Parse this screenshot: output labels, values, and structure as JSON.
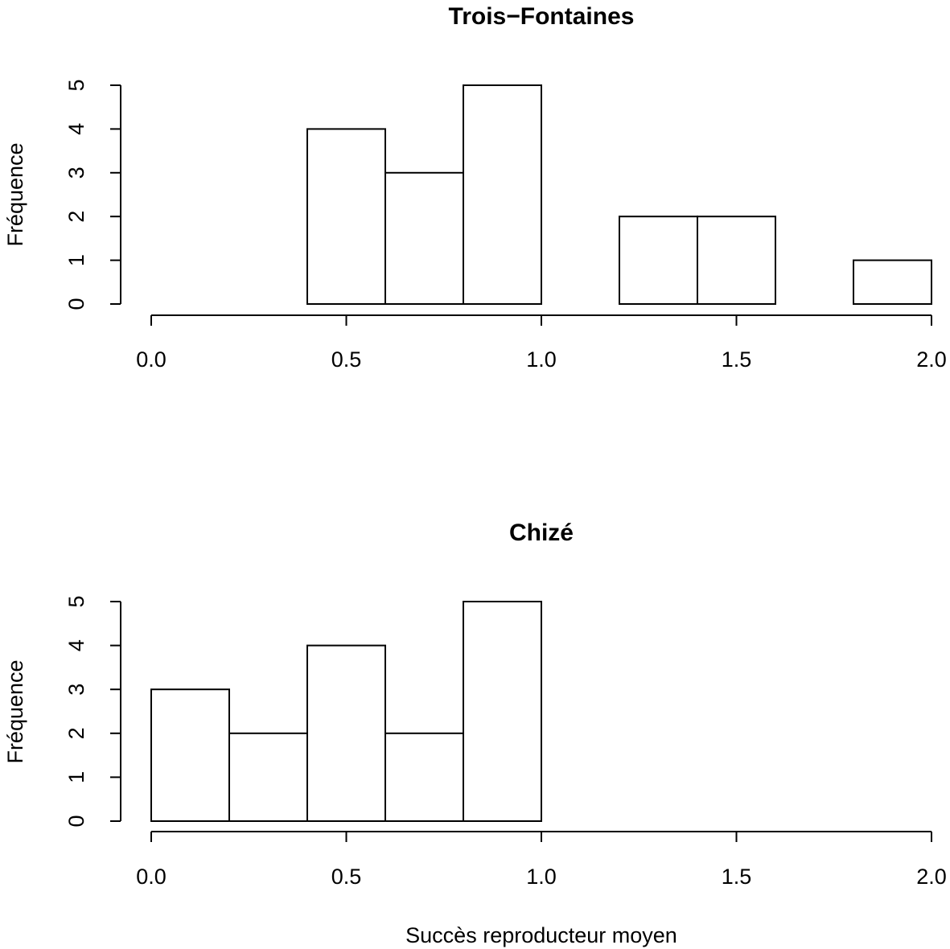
{
  "chart_data": [
    {
      "type": "bar",
      "title": "Trois−Fontaines",
      "ylabel": "Fréquence",
      "xlabel": "",
      "bin_edges": [
        0.4,
        0.6,
        0.8,
        1.0,
        1.2,
        1.4,
        1.6,
        1.8,
        2.0
      ],
      "values": [
        4,
        3,
        5,
        0,
        2,
        2,
        0,
        1
      ],
      "xlim": [
        0.0,
        2.0
      ],
      "ylim": [
        0,
        5
      ],
      "xticks": [
        "0.0",
        "0.5",
        "1.0",
        "1.5",
        "2.0"
      ],
      "yticks": [
        "0",
        "1",
        "2",
        "3",
        "4",
        "5"
      ]
    },
    {
      "type": "bar",
      "title": "Chizé",
      "ylabel": "Fréquence",
      "xlabel": "Succès reproducteur moyen",
      "bin_edges": [
        0.0,
        0.2,
        0.4,
        0.6,
        0.8,
        1.0
      ],
      "values": [
        3,
        2,
        4,
        2,
        5
      ],
      "xlim": [
        0.0,
        2.0
      ],
      "ylim": [
        0,
        5
      ],
      "xticks": [
        "0.0",
        "0.5",
        "1.0",
        "1.5",
        "2.0"
      ],
      "yticks": [
        "0",
        "1",
        "2",
        "3",
        "4",
        "5"
      ]
    }
  ]
}
